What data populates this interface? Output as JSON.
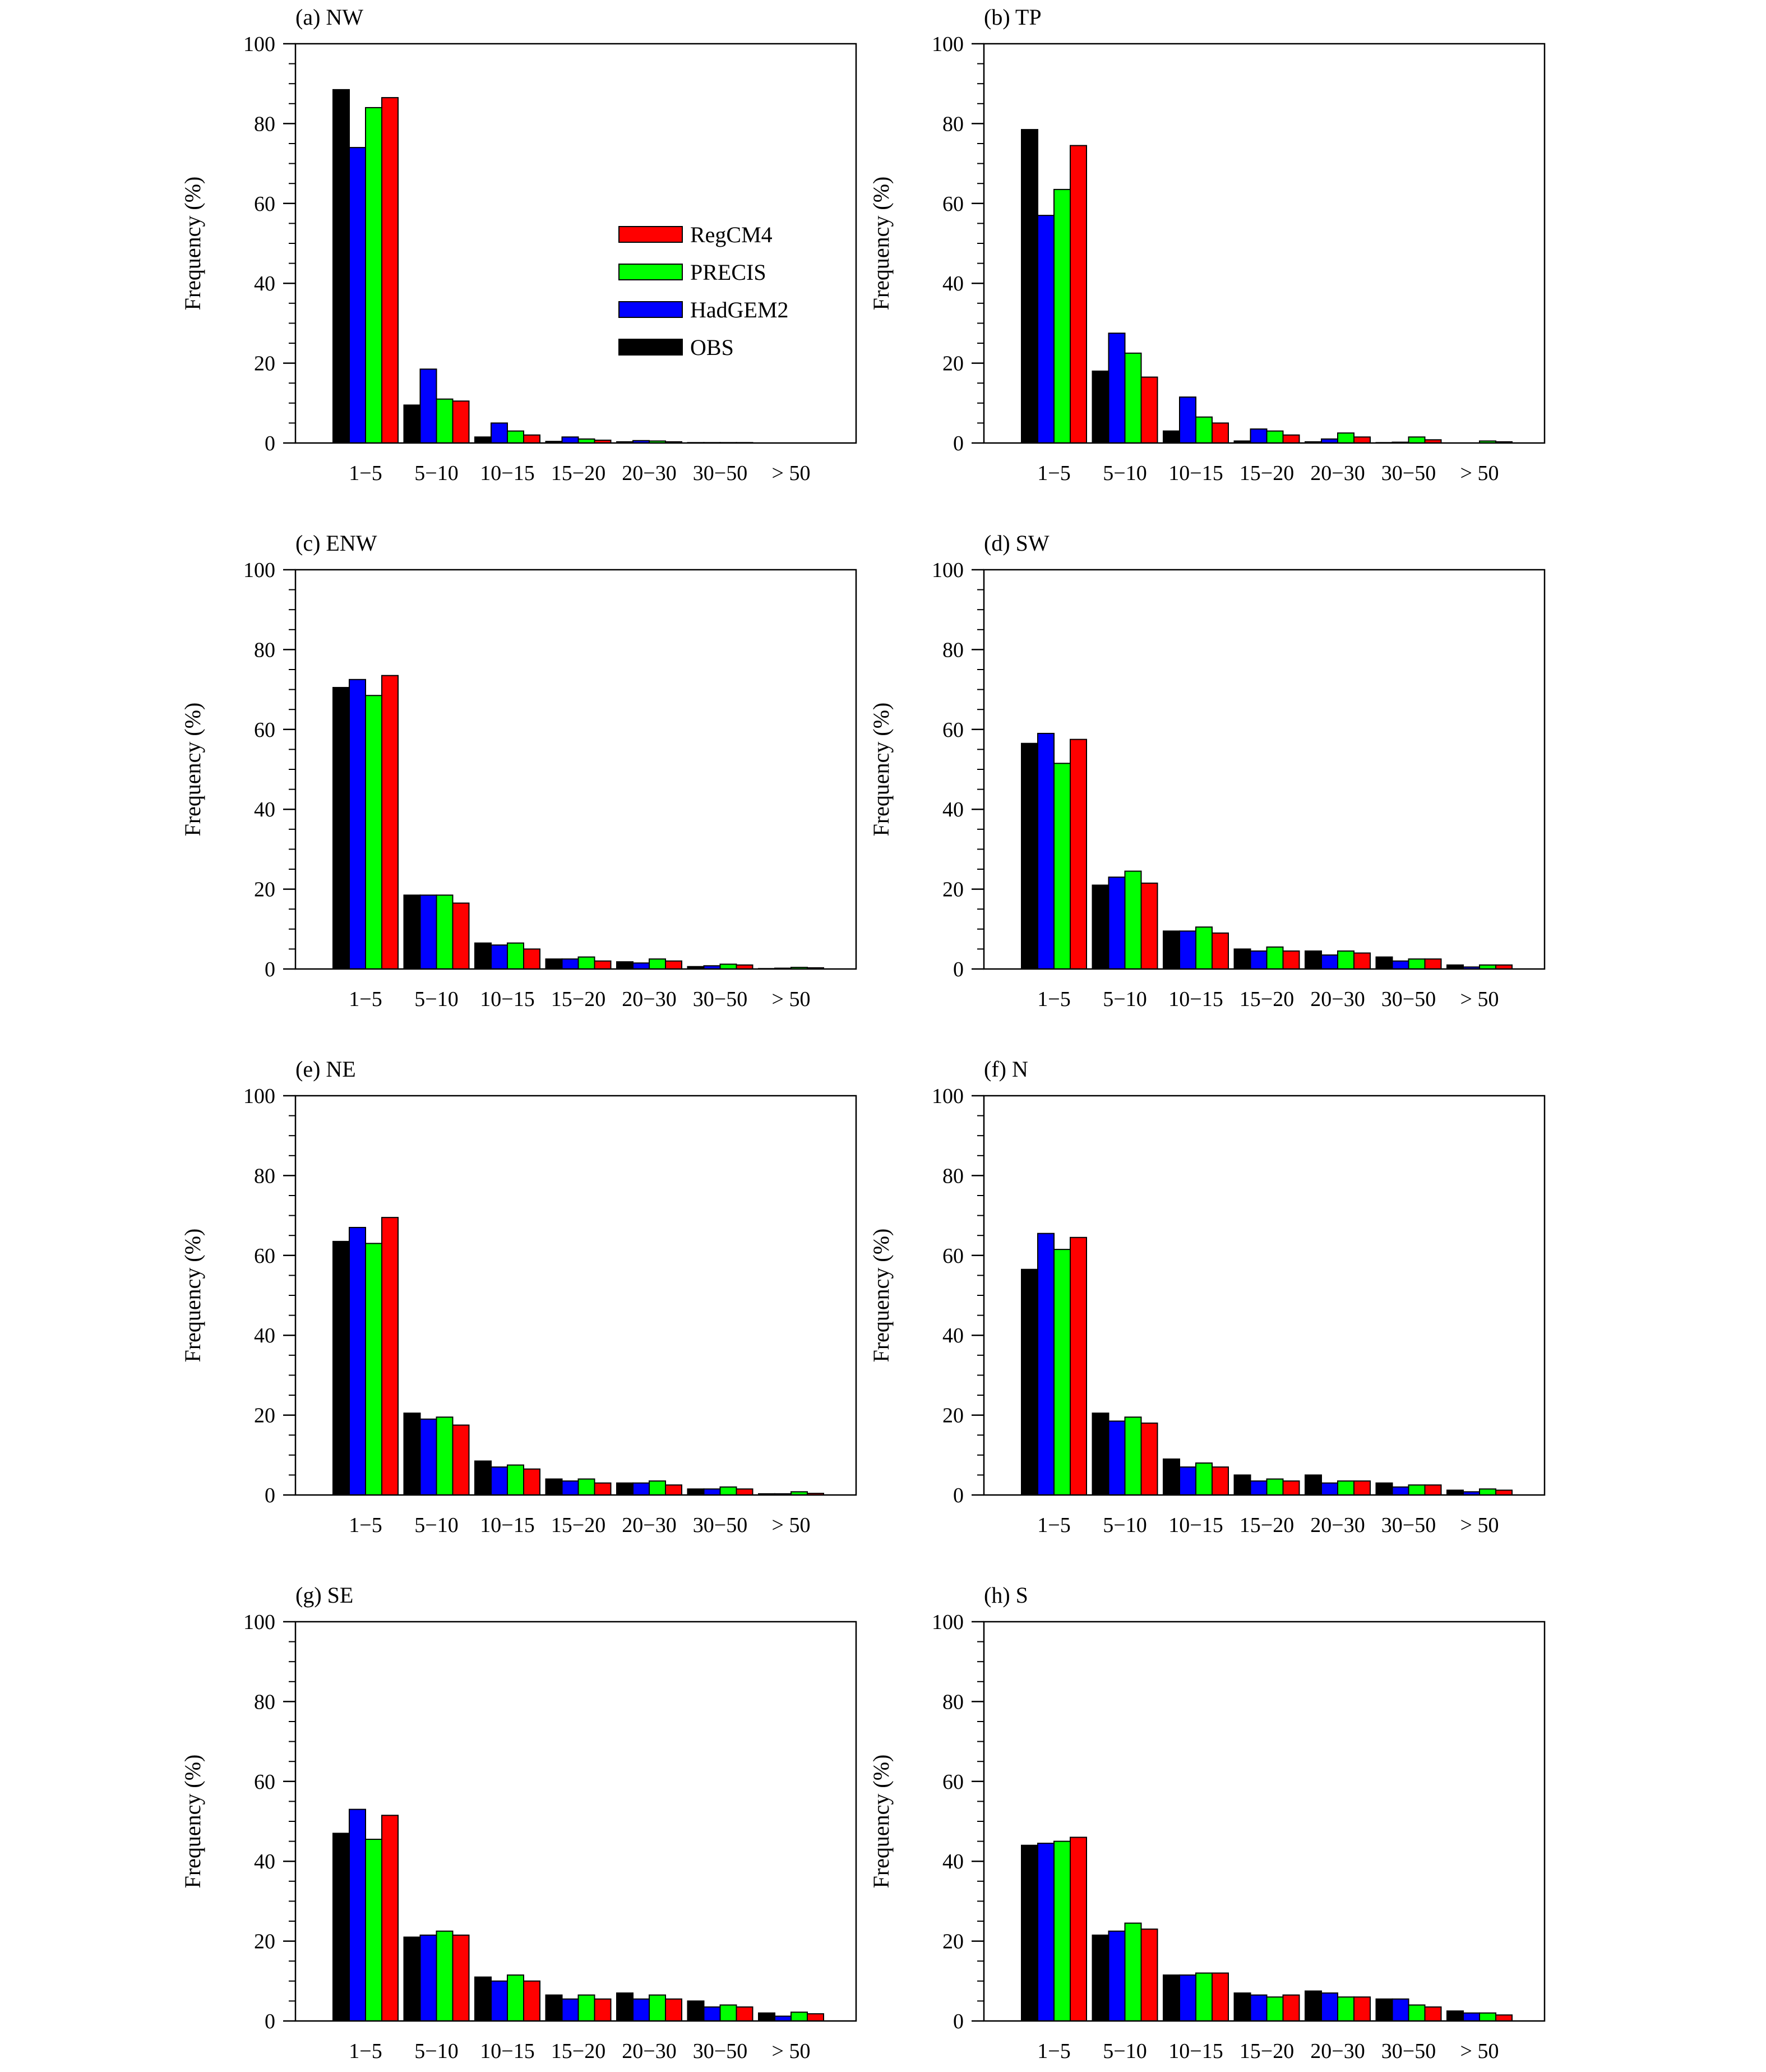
{
  "figure": {
    "legend_series_order": [
      "RegCM4",
      "PRECIS",
      "HadGEM2",
      "OBS"
    ]
  },
  "chart_data": [
    {
      "type": "bar",
      "title": "(a) NW",
      "ylabel": "Frequency (%)",
      "xlabel": "",
      "ylim": [
        0,
        100
      ],
      "yticks": [
        0,
        20,
        40,
        60,
        80,
        100
      ],
      "categories": [
        "1−5",
        "5−10",
        "10−15",
        "15−20",
        "20−30",
        "30−50",
        "> 50"
      ],
      "legend": "inside-center",
      "series": [
        {
          "name": "OBS",
          "color": "#000000",
          "values": [
            88.5,
            9.5,
            1.5,
            0.4,
            0.3,
            0.1,
            0.0
          ]
        },
        {
          "name": "HadGEM2",
          "color": "#0000ff",
          "values": [
            74.0,
            18.5,
            5.0,
            1.5,
            0.6,
            0.1,
            0.0
          ]
        },
        {
          "name": "PRECIS",
          "color": "#00ff00",
          "values": [
            84.0,
            11.0,
            3.0,
            1.0,
            0.5,
            0.1,
            0.0
          ]
        },
        {
          "name": "RegCM4",
          "color": "#ff0000",
          "values": [
            86.5,
            10.5,
            2.0,
            0.7,
            0.3,
            0.1,
            0.0
          ]
        }
      ]
    },
    {
      "type": "bar",
      "title": "(b) TP",
      "ylabel": "Frequency (%)",
      "xlabel": "",
      "ylim": [
        0,
        100
      ],
      "yticks": [
        0,
        20,
        40,
        60,
        80,
        100
      ],
      "categories": [
        "1−5",
        "5−10",
        "10−15",
        "15−20",
        "20−30",
        "30−50",
        "> 50"
      ],
      "series": [
        {
          "name": "OBS",
          "color": "#000000",
          "values": [
            78.5,
            18.0,
            3.0,
            0.5,
            0.3,
            0.1,
            0.0
          ]
        },
        {
          "name": "HadGEM2",
          "color": "#0000ff",
          "values": [
            57.0,
            27.5,
            11.5,
            3.5,
            1.0,
            0.2,
            0.0
          ]
        },
        {
          "name": "PRECIS",
          "color": "#00ff00",
          "values": [
            63.5,
            22.5,
            6.5,
            3.0,
            2.5,
            1.5,
            0.5
          ]
        },
        {
          "name": "RegCM4",
          "color": "#ff0000",
          "values": [
            74.5,
            16.5,
            5.0,
            2.0,
            1.5,
            0.8,
            0.3
          ]
        }
      ]
    },
    {
      "type": "bar",
      "title": "(c) ENW",
      "ylabel": "Frequency (%)",
      "xlabel": "",
      "ylim": [
        0,
        100
      ],
      "yticks": [
        0,
        20,
        40,
        60,
        80,
        100
      ],
      "categories": [
        "1−5",
        "5−10",
        "10−15",
        "15−20",
        "20−30",
        "30−50",
        "> 50"
      ],
      "series": [
        {
          "name": "OBS",
          "color": "#000000",
          "values": [
            70.5,
            18.5,
            6.5,
            2.5,
            1.8,
            0.6,
            0.1
          ]
        },
        {
          "name": "HadGEM2",
          "color": "#0000ff",
          "values": [
            72.5,
            18.5,
            6.0,
            2.5,
            1.5,
            0.8,
            0.2
          ]
        },
        {
          "name": "PRECIS",
          "color": "#00ff00",
          "values": [
            68.5,
            18.5,
            6.5,
            3.0,
            2.5,
            1.2,
            0.4
          ]
        },
        {
          "name": "RegCM4",
          "color": "#ff0000",
          "values": [
            73.5,
            16.5,
            5.0,
            2.0,
            2.0,
            1.0,
            0.3
          ]
        }
      ]
    },
    {
      "type": "bar",
      "title": "(d) SW",
      "ylabel": "Frequency (%)",
      "xlabel": "",
      "ylim": [
        0,
        100
      ],
      "yticks": [
        0,
        20,
        40,
        60,
        80,
        100
      ],
      "categories": [
        "1−5",
        "5−10",
        "10−15",
        "15−20",
        "20−30",
        "30−50",
        "> 50"
      ],
      "series": [
        {
          "name": "OBS",
          "color": "#000000",
          "values": [
            56.5,
            21.0,
            9.5,
            5.0,
            4.5,
            3.0,
            1.0
          ]
        },
        {
          "name": "HadGEM2",
          "color": "#0000ff",
          "values": [
            59.0,
            23.0,
            9.5,
            4.5,
            3.5,
            2.0,
            0.5
          ]
        },
        {
          "name": "PRECIS",
          "color": "#00ff00",
          "values": [
            51.5,
            24.5,
            10.5,
            5.5,
            4.5,
            2.5,
            1.0
          ]
        },
        {
          "name": "RegCM4",
          "color": "#ff0000",
          "values": [
            57.5,
            21.5,
            9.0,
            4.5,
            4.0,
            2.5,
            1.0
          ]
        }
      ]
    },
    {
      "type": "bar",
      "title": "(e) NE",
      "ylabel": "Frequency (%)",
      "xlabel": "",
      "ylim": [
        0,
        100
      ],
      "yticks": [
        0,
        20,
        40,
        60,
        80,
        100
      ],
      "categories": [
        "1−5",
        "5−10",
        "10−15",
        "15−20",
        "20−30",
        "30−50",
        "> 50"
      ],
      "series": [
        {
          "name": "OBS",
          "color": "#000000",
          "values": [
            63.5,
            20.5,
            8.5,
            4.0,
            3.0,
            1.5,
            0.3
          ]
        },
        {
          "name": "HadGEM2",
          "color": "#0000ff",
          "values": [
            67.0,
            19.0,
            7.0,
            3.5,
            3.0,
            1.5,
            0.3
          ]
        },
        {
          "name": "PRECIS",
          "color": "#00ff00",
          "values": [
            63.0,
            19.5,
            7.5,
            4.0,
            3.5,
            2.0,
            0.8
          ]
        },
        {
          "name": "RegCM4",
          "color": "#ff0000",
          "values": [
            69.5,
            17.5,
            6.5,
            3.0,
            2.5,
            1.5,
            0.4
          ]
        }
      ]
    },
    {
      "type": "bar",
      "title": "(f) N",
      "ylabel": "Frequency (%)",
      "xlabel": "",
      "ylim": [
        0,
        100
      ],
      "yticks": [
        0,
        20,
        40,
        60,
        80,
        100
      ],
      "categories": [
        "1−5",
        "5−10",
        "10−15",
        "15−20",
        "20−30",
        "30−50",
        "> 50"
      ],
      "series": [
        {
          "name": "OBS",
          "color": "#000000",
          "values": [
            56.5,
            20.5,
            9.0,
            5.0,
            5.0,
            3.0,
            1.2
          ]
        },
        {
          "name": "HadGEM2",
          "color": "#0000ff",
          "values": [
            65.5,
            18.5,
            7.0,
            3.5,
            3.0,
            2.0,
            0.8
          ]
        },
        {
          "name": "PRECIS",
          "color": "#00ff00",
          "values": [
            61.5,
            19.5,
            8.0,
            4.0,
            3.5,
            2.5,
            1.5
          ]
        },
        {
          "name": "RegCM4",
          "color": "#ff0000",
          "values": [
            64.5,
            18.0,
            7.0,
            3.5,
            3.5,
            2.5,
            1.2
          ]
        }
      ]
    },
    {
      "type": "bar",
      "title": "(g) SE",
      "ylabel": "Frequency (%)",
      "xlabel": "",
      "ylim": [
        0,
        100
      ],
      "yticks": [
        0,
        20,
        40,
        60,
        80,
        100
      ],
      "categories": [
        "1−5",
        "5−10",
        "10−15",
        "15−20",
        "20−30",
        "30−50",
        "> 50"
      ],
      "series": [
        {
          "name": "OBS",
          "color": "#000000",
          "values": [
            47.0,
            21.0,
            11.0,
            6.5,
            7.0,
            5.0,
            2.0
          ]
        },
        {
          "name": "HadGEM2",
          "color": "#0000ff",
          "values": [
            53.0,
            21.5,
            10.0,
            5.5,
            5.5,
            3.5,
            1.2
          ]
        },
        {
          "name": "PRECIS",
          "color": "#00ff00",
          "values": [
            45.5,
            22.5,
            11.5,
            6.5,
            6.5,
            4.0,
            2.2
          ]
        },
        {
          "name": "RegCM4",
          "color": "#ff0000",
          "values": [
            51.5,
            21.5,
            10.0,
            5.5,
            5.5,
            3.5,
            1.8
          ]
        }
      ]
    },
    {
      "type": "bar",
      "title": "(h) S",
      "ylabel": "Frequency (%)",
      "xlabel": "",
      "ylim": [
        0,
        100
      ],
      "yticks": [
        0,
        20,
        40,
        60,
        80,
        100
      ],
      "categories": [
        "1−5",
        "5−10",
        "10−15",
        "15−20",
        "20−30",
        "30−50",
        "> 50"
      ],
      "series": [
        {
          "name": "OBS",
          "color": "#000000",
          "values": [
            44.0,
            21.5,
            11.5,
            7.0,
            7.5,
            5.5,
            2.5
          ]
        },
        {
          "name": "HadGEM2",
          "color": "#0000ff",
          "values": [
            44.5,
            22.5,
            11.5,
            6.5,
            7.0,
            5.5,
            2.0
          ]
        },
        {
          "name": "PRECIS",
          "color": "#00ff00",
          "values": [
            45.0,
            24.5,
            12.0,
            6.0,
            6.0,
            4.0,
            2.0
          ]
        },
        {
          "name": "RegCM4",
          "color": "#ff0000",
          "values": [
            46.0,
            23.0,
            12.0,
            6.5,
            6.0,
            3.5,
            1.5
          ]
        }
      ]
    }
  ]
}
